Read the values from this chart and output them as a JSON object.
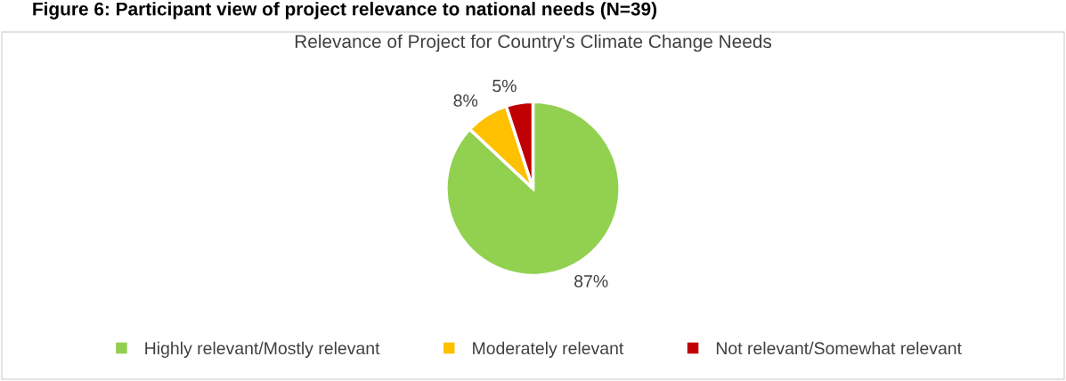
{
  "chart_data": {
    "type": "pie",
    "title": "Relevance of Project for Country's Climate Change Needs",
    "annotations": [
      "Figure 6: Participant view of project relevance to national needs (N=39)"
    ],
    "categories": [
      "Highly relevant/Mostly relevant",
      "Moderately relevant",
      "Not relevant/Somewhat relevant"
    ],
    "values": [
      87,
      8,
      5
    ],
    "colors": [
      "#92d050",
      "#ffc000",
      "#c00000"
    ],
    "value_labels": [
      "87%",
      "8%",
      "5%"
    ],
    "legend": "bottom"
  }
}
